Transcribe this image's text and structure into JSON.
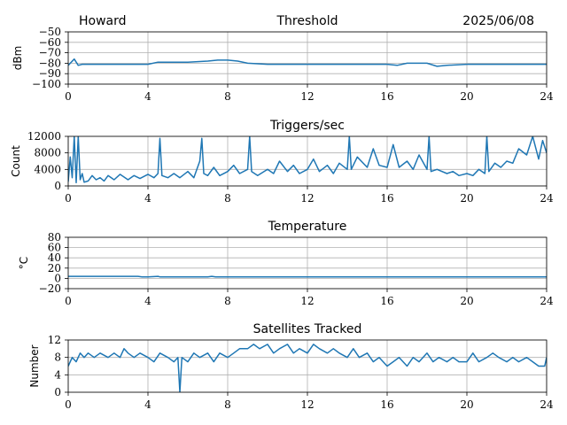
{
  "header": {
    "station": "Howard",
    "date": "2025/06/08"
  },
  "colors": {
    "line": "#1f77b4",
    "grid": "#b0b0b0",
    "axes": "#000000"
  },
  "chart_data": [
    {
      "type": "line",
      "title": "Threshold",
      "ylabel": "dBm",
      "xlim": [
        0,
        24
      ],
      "ylim": [
        -100,
        -50
      ],
      "xticks": [
        0,
        4,
        8,
        12,
        16,
        20,
        24
      ],
      "yticks": [
        -100,
        -90,
        -80,
        -70,
        -60,
        -50
      ],
      "ytick_labels": [
        "−100",
        "−90",
        "−80",
        "−70",
        "−60",
        "−50"
      ],
      "grid": true,
      "series": [
        {
          "x": [
            0,
            0.3,
            0.5,
            0.7,
            1,
            2,
            3,
            4,
            4.5,
            5,
            6,
            7,
            7.5,
            8,
            8.5,
            9,
            10,
            11,
            12,
            13,
            14,
            15,
            16,
            16.5,
            17,
            17.5,
            18,
            18.5,
            19,
            20,
            21,
            22,
            23,
            24
          ],
          "y": [
            -82,
            -76,
            -82,
            -81,
            -81,
            -81,
            -81,
            -81,
            -79,
            -79,
            -79,
            -78,
            -77,
            -77,
            -78,
            -80,
            -81,
            -81,
            -81,
            -81,
            -81,
            -81,
            -81,
            -82,
            -80,
            -80,
            -80,
            -83,
            -82,
            -81,
            -81,
            -81,
            -81,
            -81
          ]
        }
      ]
    },
    {
      "type": "line",
      "title": "Triggers/sec",
      "ylabel": "Count",
      "xlim": [
        0,
        24
      ],
      "ylim": [
        0,
        12000
      ],
      "xticks": [
        0,
        4,
        8,
        12,
        16,
        20,
        24
      ],
      "yticks": [
        0,
        4000,
        8000,
        12000
      ],
      "ytick_labels": [
        "0",
        "4000",
        "8000",
        "12000"
      ],
      "grid": true,
      "series": [
        {
          "x": [
            0,
            0.1,
            0.2,
            0.3,
            0.4,
            0.5,
            0.6,
            0.7,
            0.8,
            1.0,
            1.2,
            1.4,
            1.6,
            1.8,
            2.0,
            2.3,
            2.6,
            3.0,
            3.3,
            3.6,
            4.0,
            4.3,
            4.5,
            4.6,
            4.7,
            5.0,
            5.3,
            5.6,
            6.0,
            6.3,
            6.6,
            6.7,
            6.8,
            7.0,
            7.3,
            7.6,
            8.0,
            8.3,
            8.6,
            9.0,
            9.1,
            9.2,
            9.5,
            10.0,
            10.3,
            10.6,
            11.0,
            11.3,
            11.6,
            12.0,
            12.3,
            12.6,
            13.0,
            13.3,
            13.6,
            14.0,
            14.1,
            14.2,
            14.5,
            15.0,
            15.3,
            15.6,
            16.0,
            16.3,
            16.6,
            17.0,
            17.3,
            17.6,
            18.0,
            18.1,
            18.2,
            18.5,
            19.0,
            19.3,
            19.6,
            20.0,
            20.3,
            20.6,
            20.9,
            21.0,
            21.1,
            21.4,
            21.7,
            22.0,
            22.3,
            22.6,
            23.0,
            23.3,
            23.6,
            23.8,
            24.0
          ],
          "y": [
            1000,
            7000,
            2000,
            12000,
            800,
            12000,
            1500,
            3000,
            900,
            1200,
            2500,
            1500,
            2000,
            1200,
            2500,
            1500,
            2800,
            1500,
            2500,
            1800,
            2800,
            2000,
            3000,
            11500,
            2500,
            2000,
            3000,
            2000,
            3500,
            2000,
            6000,
            11500,
            3000,
            2500,
            4500,
            2500,
            3500,
            5000,
            3000,
            4000,
            12000,
            3500,
            2500,
            4000,
            3000,
            6000,
            3500,
            5000,
            3000,
            4000,
            6500,
            3500,
            5000,
            3000,
            5500,
            4000,
            12000,
            4000,
            7000,
            4500,
            9000,
            5000,
            4500,
            10000,
            4500,
            6000,
            4000,
            7500,
            4000,
            12000,
            3500,
            4000,
            3000,
            3500,
            2500,
            3000,
            2500,
            4000,
            3000,
            12000,
            3500,
            5500,
            4500,
            6000,
            5500,
            9000,
            7500,
            12000,
            6500,
            11000,
            8000
          ]
        }
      ]
    },
    {
      "type": "line",
      "title": "Temperature",
      "ylabel": "°C",
      "xlim": [
        0,
        24
      ],
      "ylim": [
        -20,
        80
      ],
      "xticks": [
        0,
        4,
        8,
        12,
        16,
        20,
        24
      ],
      "yticks": [
        -20,
        0,
        20,
        40,
        60,
        80
      ],
      "ytick_labels": [
        "−20",
        "0",
        "20",
        "40",
        "60",
        "80"
      ],
      "grid": true,
      "series": [
        {
          "x": [
            0,
            1,
            2,
            3,
            3.5,
            3.7,
            4,
            4.5,
            4.6,
            5,
            6,
            7,
            7.2,
            7.4,
            8,
            12,
            16,
            20,
            24
          ],
          "y": [
            4,
            4,
            4,
            4,
            4,
            3,
            3,
            4,
            3,
            3,
            3,
            3,
            4,
            3,
            3,
            3,
            3,
            3,
            3
          ]
        }
      ]
    },
    {
      "type": "line",
      "title": "Satellites Tracked",
      "ylabel": "Number",
      "xlim": [
        0,
        24
      ],
      "ylim": [
        0,
        12
      ],
      "xticks": [
        0,
        4,
        8,
        12,
        16,
        20,
        24
      ],
      "yticks": [
        0,
        4,
        8,
        12
      ],
      "ytick_labels": [
        "0",
        "4",
        "8",
        "12"
      ],
      "grid": true,
      "series": [
        {
          "x": [
            0,
            0.2,
            0.4,
            0.6,
            0.8,
            1.0,
            1.3,
            1.6,
            2.0,
            2.3,
            2.6,
            2.8,
            3.0,
            3.3,
            3.6,
            4.0,
            4.3,
            4.6,
            5.0,
            5.3,
            5.5,
            5.6,
            5.7,
            6.0,
            6.3,
            6.6,
            7.0,
            7.3,
            7.6,
            8.0,
            8.3,
            8.6,
            9.0,
            9.3,
            9.6,
            10.0,
            10.3,
            10.6,
            11.0,
            11.3,
            11.6,
            12.0,
            12.3,
            12.6,
            13.0,
            13.3,
            13.6,
            14.0,
            14.3,
            14.6,
            15.0,
            15.3,
            15.6,
            16.0,
            16.3,
            16.6,
            17.0,
            17.3,
            17.6,
            18.0,
            18.3,
            18.6,
            19.0,
            19.3,
            19.6,
            20.0,
            20.3,
            20.6,
            21.0,
            21.3,
            21.6,
            22.0,
            22.3,
            22.6,
            23.0,
            23.3,
            23.6,
            23.9,
            24.0
          ],
          "y": [
            6,
            8,
            7,
            9,
            8,
            9,
            8,
            9,
            8,
            9,
            8,
            10,
            9,
            8,
            9,
            8,
            7,
            9,
            8,
            7,
            8,
            0,
            8,
            7,
            9,
            8,
            9,
            7,
            9,
            8,
            9,
            10,
            10,
            11,
            10,
            11,
            9,
            10,
            11,
            9,
            10,
            9,
            11,
            10,
            9,
            10,
            9,
            8,
            10,
            8,
            9,
            7,
            8,
            6,
            7,
            8,
            6,
            8,
            7,
            9,
            7,
            8,
            7,
            8,
            7,
            7,
            9,
            7,
            8,
            9,
            8,
            7,
            8,
            7,
            8,
            7,
            6,
            6,
            8
          ]
        }
      ]
    }
  ]
}
